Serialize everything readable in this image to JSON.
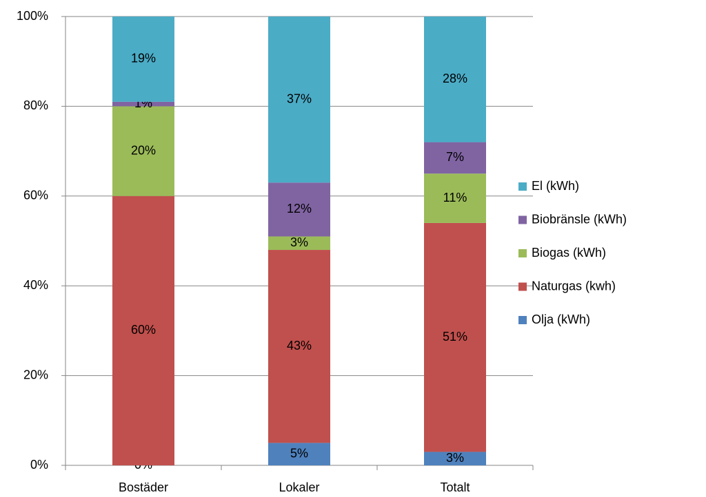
{
  "chart_data": {
    "type": "stacked_bar_100",
    "categories": [
      "Bostäder",
      "Lokaler",
      "Totalt"
    ],
    "series": [
      {
        "name": "Olja (kWh)",
        "color": "#4f81bd",
        "values": [
          0,
          5,
          3
        ],
        "value_labels": [
          "0%",
          "5%",
          "3%"
        ]
      },
      {
        "name": "Naturgas (kwh)",
        "color": "#c0504d",
        "values": [
          60,
          43,
          51
        ],
        "value_labels": [
          "60%",
          "43%",
          "51%"
        ]
      },
      {
        "name": "Biogas (kWh)",
        "color": "#9bbb59",
        "values": [
          20,
          3,
          11
        ],
        "value_labels": [
          "20%",
          "3%",
          "11%"
        ]
      },
      {
        "name": "Biobränsle (kWh)",
        "color": "#8064a2",
        "values": [
          1,
          12,
          7
        ],
        "value_labels": [
          "1%",
          "12%",
          "7%"
        ]
      },
      {
        "name": "El (kWh)",
        "color": "#4bacc6",
        "values": [
          19,
          37,
          28
        ],
        "value_labels": [
          "19%",
          "37%",
          "28%"
        ]
      }
    ],
    "ylim": [
      0,
      100
    ],
    "yticks": [
      {
        "value": 0,
        "label": "0%"
      },
      {
        "value": 20,
        "label": "20%"
      },
      {
        "value": 40,
        "label": "40%"
      },
      {
        "value": 60,
        "label": "60%"
      },
      {
        "value": 80,
        "label": "80%"
      },
      {
        "value": 100,
        "label": "100%"
      }
    ],
    "grid": true,
    "legend": "right"
  }
}
